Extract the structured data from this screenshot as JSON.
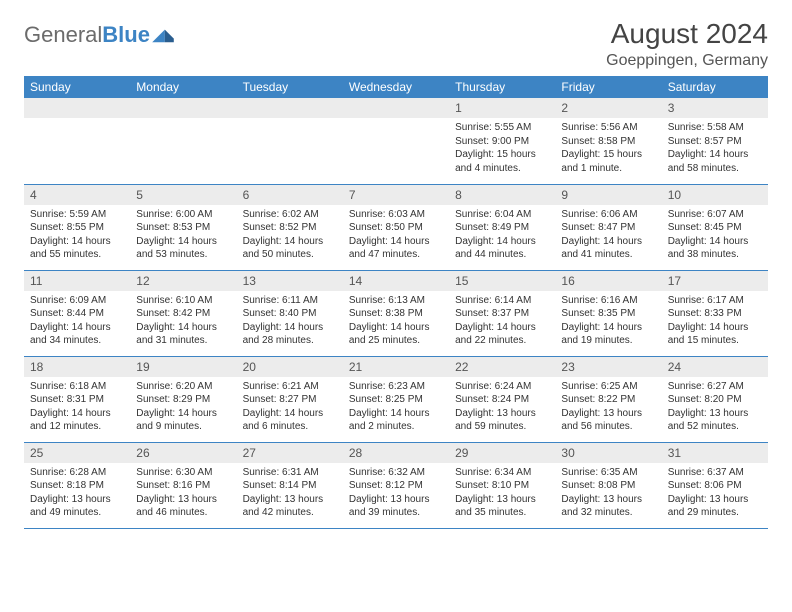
{
  "brand": {
    "name_part1": "General",
    "name_part2": "Blue"
  },
  "title": "August 2024",
  "location": "Goeppingen, Germany",
  "colors": {
    "header_bg": "#3d84c4",
    "header_text": "#ffffff",
    "daynum_bg": "#ececec",
    "text": "#333333",
    "brand_gray": "#6b6b6b",
    "brand_blue": "#3d84c4"
  },
  "weekdays": [
    "Sunday",
    "Monday",
    "Tuesday",
    "Wednesday",
    "Thursday",
    "Friday",
    "Saturday"
  ],
  "weeks": [
    [
      {
        "blank": true
      },
      {
        "blank": true
      },
      {
        "blank": true
      },
      {
        "blank": true
      },
      {
        "num": "1",
        "sunrise": "Sunrise: 5:55 AM",
        "sunset": "Sunset: 9:00 PM",
        "day1": "Daylight: 15 hours",
        "day2": "and 4 minutes."
      },
      {
        "num": "2",
        "sunrise": "Sunrise: 5:56 AM",
        "sunset": "Sunset: 8:58 PM",
        "day1": "Daylight: 15 hours",
        "day2": "and 1 minute."
      },
      {
        "num": "3",
        "sunrise": "Sunrise: 5:58 AM",
        "sunset": "Sunset: 8:57 PM",
        "day1": "Daylight: 14 hours",
        "day2": "and 58 minutes."
      }
    ],
    [
      {
        "num": "4",
        "sunrise": "Sunrise: 5:59 AM",
        "sunset": "Sunset: 8:55 PM",
        "day1": "Daylight: 14 hours",
        "day2": "and 55 minutes."
      },
      {
        "num": "5",
        "sunrise": "Sunrise: 6:00 AM",
        "sunset": "Sunset: 8:53 PM",
        "day1": "Daylight: 14 hours",
        "day2": "and 53 minutes."
      },
      {
        "num": "6",
        "sunrise": "Sunrise: 6:02 AM",
        "sunset": "Sunset: 8:52 PM",
        "day1": "Daylight: 14 hours",
        "day2": "and 50 minutes."
      },
      {
        "num": "7",
        "sunrise": "Sunrise: 6:03 AM",
        "sunset": "Sunset: 8:50 PM",
        "day1": "Daylight: 14 hours",
        "day2": "and 47 minutes."
      },
      {
        "num": "8",
        "sunrise": "Sunrise: 6:04 AM",
        "sunset": "Sunset: 8:49 PM",
        "day1": "Daylight: 14 hours",
        "day2": "and 44 minutes."
      },
      {
        "num": "9",
        "sunrise": "Sunrise: 6:06 AM",
        "sunset": "Sunset: 8:47 PM",
        "day1": "Daylight: 14 hours",
        "day2": "and 41 minutes."
      },
      {
        "num": "10",
        "sunrise": "Sunrise: 6:07 AM",
        "sunset": "Sunset: 8:45 PM",
        "day1": "Daylight: 14 hours",
        "day2": "and 38 minutes."
      }
    ],
    [
      {
        "num": "11",
        "sunrise": "Sunrise: 6:09 AM",
        "sunset": "Sunset: 8:44 PM",
        "day1": "Daylight: 14 hours",
        "day2": "and 34 minutes."
      },
      {
        "num": "12",
        "sunrise": "Sunrise: 6:10 AM",
        "sunset": "Sunset: 8:42 PM",
        "day1": "Daylight: 14 hours",
        "day2": "and 31 minutes."
      },
      {
        "num": "13",
        "sunrise": "Sunrise: 6:11 AM",
        "sunset": "Sunset: 8:40 PM",
        "day1": "Daylight: 14 hours",
        "day2": "and 28 minutes."
      },
      {
        "num": "14",
        "sunrise": "Sunrise: 6:13 AM",
        "sunset": "Sunset: 8:38 PM",
        "day1": "Daylight: 14 hours",
        "day2": "and 25 minutes."
      },
      {
        "num": "15",
        "sunrise": "Sunrise: 6:14 AM",
        "sunset": "Sunset: 8:37 PM",
        "day1": "Daylight: 14 hours",
        "day2": "and 22 minutes."
      },
      {
        "num": "16",
        "sunrise": "Sunrise: 6:16 AM",
        "sunset": "Sunset: 8:35 PM",
        "day1": "Daylight: 14 hours",
        "day2": "and 19 minutes."
      },
      {
        "num": "17",
        "sunrise": "Sunrise: 6:17 AM",
        "sunset": "Sunset: 8:33 PM",
        "day1": "Daylight: 14 hours",
        "day2": "and 15 minutes."
      }
    ],
    [
      {
        "num": "18",
        "sunrise": "Sunrise: 6:18 AM",
        "sunset": "Sunset: 8:31 PM",
        "day1": "Daylight: 14 hours",
        "day2": "and 12 minutes."
      },
      {
        "num": "19",
        "sunrise": "Sunrise: 6:20 AM",
        "sunset": "Sunset: 8:29 PM",
        "day1": "Daylight: 14 hours",
        "day2": "and 9 minutes."
      },
      {
        "num": "20",
        "sunrise": "Sunrise: 6:21 AM",
        "sunset": "Sunset: 8:27 PM",
        "day1": "Daylight: 14 hours",
        "day2": "and 6 minutes."
      },
      {
        "num": "21",
        "sunrise": "Sunrise: 6:23 AM",
        "sunset": "Sunset: 8:25 PM",
        "day1": "Daylight: 14 hours",
        "day2": "and 2 minutes."
      },
      {
        "num": "22",
        "sunrise": "Sunrise: 6:24 AM",
        "sunset": "Sunset: 8:24 PM",
        "day1": "Daylight: 13 hours",
        "day2": "and 59 minutes."
      },
      {
        "num": "23",
        "sunrise": "Sunrise: 6:25 AM",
        "sunset": "Sunset: 8:22 PM",
        "day1": "Daylight: 13 hours",
        "day2": "and 56 minutes."
      },
      {
        "num": "24",
        "sunrise": "Sunrise: 6:27 AM",
        "sunset": "Sunset: 8:20 PM",
        "day1": "Daylight: 13 hours",
        "day2": "and 52 minutes."
      }
    ],
    [
      {
        "num": "25",
        "sunrise": "Sunrise: 6:28 AM",
        "sunset": "Sunset: 8:18 PM",
        "day1": "Daylight: 13 hours",
        "day2": "and 49 minutes."
      },
      {
        "num": "26",
        "sunrise": "Sunrise: 6:30 AM",
        "sunset": "Sunset: 8:16 PM",
        "day1": "Daylight: 13 hours",
        "day2": "and 46 minutes."
      },
      {
        "num": "27",
        "sunrise": "Sunrise: 6:31 AM",
        "sunset": "Sunset: 8:14 PM",
        "day1": "Daylight: 13 hours",
        "day2": "and 42 minutes."
      },
      {
        "num": "28",
        "sunrise": "Sunrise: 6:32 AM",
        "sunset": "Sunset: 8:12 PM",
        "day1": "Daylight: 13 hours",
        "day2": "and 39 minutes."
      },
      {
        "num": "29",
        "sunrise": "Sunrise: 6:34 AM",
        "sunset": "Sunset: 8:10 PM",
        "day1": "Daylight: 13 hours",
        "day2": "and 35 minutes."
      },
      {
        "num": "30",
        "sunrise": "Sunrise: 6:35 AM",
        "sunset": "Sunset: 8:08 PM",
        "day1": "Daylight: 13 hours",
        "day2": "and 32 minutes."
      },
      {
        "num": "31",
        "sunrise": "Sunrise: 6:37 AM",
        "sunset": "Sunset: 8:06 PM",
        "day1": "Daylight: 13 hours",
        "day2": "and 29 minutes."
      }
    ]
  ]
}
